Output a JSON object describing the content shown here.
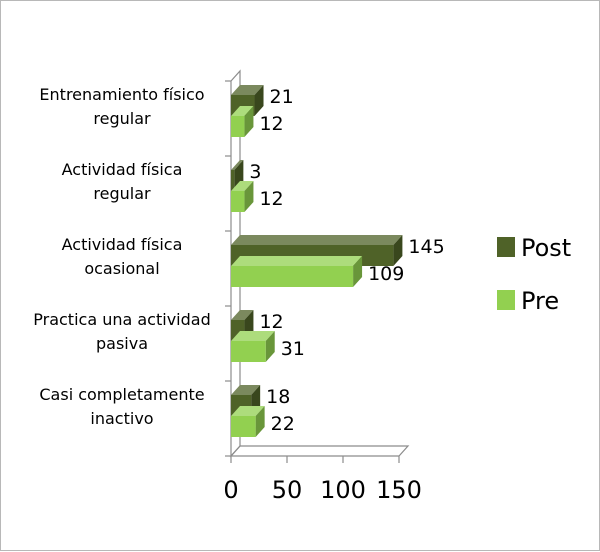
{
  "chart_data": {
    "type": "bar",
    "orientation": "horizontal",
    "three_d": true,
    "categories": [
      [
        "Entrenamiento físico",
        "regular"
      ],
      [
        "Actividad  física",
        "regular"
      ],
      [
        "Actividad física",
        "ocasional"
      ],
      [
        "Practica una actividad",
        "pasiva"
      ],
      [
        "Casi completamente",
        "inactivo"
      ]
    ],
    "series": [
      {
        "name": "Post",
        "color": "#4f6228",
        "values": [
          21,
          3,
          145,
          12,
          18
        ]
      },
      {
        "name": "Pre",
        "color": "#92d050",
        "values": [
          12,
          12,
          109,
          31,
          22
        ]
      }
    ],
    "xlim": [
      0,
      150
    ],
    "xticks": [
      "0",
      "50",
      "100",
      "150"
    ],
    "legend_position": "right",
    "grid": false
  }
}
